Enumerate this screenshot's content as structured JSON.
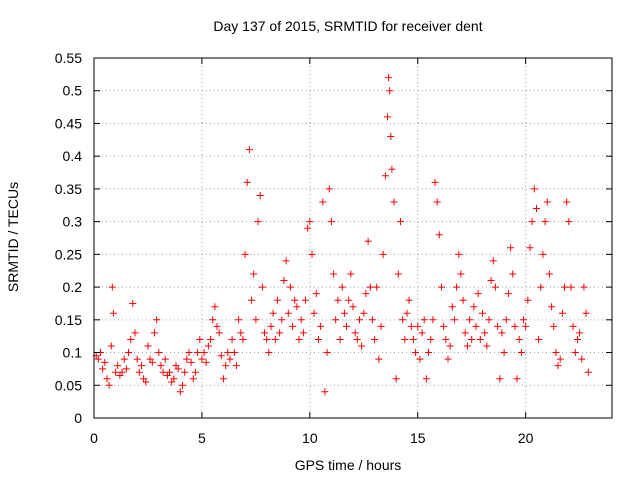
{
  "chart_data": {
    "type": "scatter",
    "title": "Day 137 of 2015, SRMTID for receiver dent",
    "xlabel": "GPS time / hours",
    "ylabel": "SRMTID / TECUs",
    "xlim": [
      0,
      24
    ],
    "ylim": [
      0,
      0.55
    ],
    "xticks": [
      0,
      5,
      10,
      15,
      20
    ],
    "xtick_labels": [
      "0",
      "5",
      "10",
      "15",
      "20"
    ],
    "yticks": [
      0,
      0.05,
      0.1,
      0.15,
      0.2,
      0.25,
      0.3,
      0.35,
      0.4,
      0.45,
      0.5,
      0.55
    ],
    "ytick_labels": [
      "0",
      "0.05",
      "0.1",
      "0.15",
      "0.2",
      "0.25",
      "0.3",
      "0.35",
      "0.4",
      "0.45",
      "0.5",
      "0.55"
    ],
    "grid": true,
    "marker": "+",
    "marker_color": "#ff0000",
    "series": [
      {
        "name": "SRMTID",
        "points": [
          [
            0.1,
            0.095
          ],
          [
            0.2,
            0.09
          ],
          [
            0.3,
            0.1
          ],
          [
            0.4,
            0.075
          ],
          [
            0.5,
            0.085
          ],
          [
            0.6,
            0.06
          ],
          [
            0.7,
            0.05
          ],
          [
            0.8,
            0.11
          ],
          [
            0.85,
            0.2
          ],
          [
            0.9,
            0.16
          ],
          [
            1.0,
            0.07
          ],
          [
            1.1,
            0.08
          ],
          [
            1.2,
            0.065
          ],
          [
            1.3,
            0.07
          ],
          [
            1.4,
            0.09
          ],
          [
            1.5,
            0.075
          ],
          [
            1.6,
            0.1
          ],
          [
            1.7,
            0.12
          ],
          [
            1.8,
            0.175
          ],
          [
            1.9,
            0.13
          ],
          [
            2.0,
            0.09
          ],
          [
            2.1,
            0.07
          ],
          [
            2.2,
            0.08
          ],
          [
            2.3,
            0.06
          ],
          [
            2.4,
            0.055
          ],
          [
            2.5,
            0.11
          ],
          [
            2.6,
            0.09
          ],
          [
            2.7,
            0.085
          ],
          [
            2.8,
            0.13
          ],
          [
            2.9,
            0.15
          ],
          [
            3.0,
            0.1
          ],
          [
            3.1,
            0.08
          ],
          [
            3.2,
            0.07
          ],
          [
            3.3,
            0.09
          ],
          [
            3.4,
            0.065
          ],
          [
            3.5,
            0.07
          ],
          [
            3.6,
            0.055
          ],
          [
            3.7,
            0.06
          ],
          [
            3.8,
            0.08
          ],
          [
            3.9,
            0.075
          ],
          [
            4.0,
            0.04
          ],
          [
            4.1,
            0.05
          ],
          [
            4.2,
            0.07
          ],
          [
            4.3,
            0.09
          ],
          [
            4.4,
            0.1
          ],
          [
            4.5,
            0.085
          ],
          [
            4.6,
            0.06
          ],
          [
            4.7,
            0.07
          ],
          [
            4.8,
            0.1
          ],
          [
            4.9,
            0.12
          ],
          [
            5.0,
            0.09
          ],
          [
            5.1,
            0.1
          ],
          [
            5.2,
            0.085
          ],
          [
            5.3,
            0.11
          ],
          [
            5.4,
            0.12
          ],
          [
            5.5,
            0.15
          ],
          [
            5.6,
            0.17
          ],
          [
            5.7,
            0.14
          ],
          [
            5.8,
            0.13
          ],
          [
            5.9,
            0.095
          ],
          [
            6.0,
            0.06
          ],
          [
            6.1,
            0.08
          ],
          [
            6.2,
            0.1
          ],
          [
            6.3,
            0.09
          ],
          [
            6.4,
            0.12
          ],
          [
            6.5,
            0.1
          ],
          [
            6.6,
            0.08
          ],
          [
            6.7,
            0.15
          ],
          [
            6.8,
            0.13
          ],
          [
            6.9,
            0.12
          ],
          [
            7.0,
            0.25
          ],
          [
            7.1,
            0.36
          ],
          [
            7.2,
            0.41
          ],
          [
            7.3,
            0.18
          ],
          [
            7.4,
            0.22
          ],
          [
            7.5,
            0.15
          ],
          [
            7.6,
            0.3
          ],
          [
            7.7,
            0.34
          ],
          [
            7.8,
            0.2
          ],
          [
            7.9,
            0.13
          ],
          [
            8.0,
            0.12
          ],
          [
            8.1,
            0.1
          ],
          [
            8.2,
            0.14
          ],
          [
            8.3,
            0.16
          ],
          [
            8.4,
            0.12
          ],
          [
            8.5,
            0.18
          ],
          [
            8.6,
            0.13
          ],
          [
            8.7,
            0.15
          ],
          [
            8.8,
            0.21
          ],
          [
            8.9,
            0.24
          ],
          [
            9.0,
            0.16
          ],
          [
            9.1,
            0.2
          ],
          [
            9.2,
            0.14
          ],
          [
            9.3,
            0.18
          ],
          [
            9.4,
            0.17
          ],
          [
            9.5,
            0.12
          ],
          [
            9.6,
            0.15
          ],
          [
            9.7,
            0.13
          ],
          [
            9.8,
            0.18
          ],
          [
            9.9,
            0.29
          ],
          [
            10.0,
            0.3
          ],
          [
            10.1,
            0.25
          ],
          [
            10.2,
            0.16
          ],
          [
            10.3,
            0.19
          ],
          [
            10.4,
            0.12
          ],
          [
            10.5,
            0.14
          ],
          [
            10.6,
            0.33
          ],
          [
            10.7,
            0.04
          ],
          [
            10.8,
            0.1
          ],
          [
            10.9,
            0.35
          ],
          [
            11.0,
            0.3
          ],
          [
            11.1,
            0.22
          ],
          [
            11.2,
            0.15
          ],
          [
            11.3,
            0.18
          ],
          [
            11.4,
            0.12
          ],
          [
            11.5,
            0.2
          ],
          [
            11.6,
            0.16
          ],
          [
            11.7,
            0.14
          ],
          [
            11.8,
            0.18
          ],
          [
            11.9,
            0.22
          ],
          [
            12.0,
            0.17
          ],
          [
            12.1,
            0.13
          ],
          [
            12.2,
            0.12
          ],
          [
            12.3,
            0.15
          ],
          [
            12.4,
            0.11
          ],
          [
            12.5,
            0.16
          ],
          [
            12.6,
            0.19
          ],
          [
            12.7,
            0.27
          ],
          [
            12.8,
            0.2
          ],
          [
            12.9,
            0.15
          ],
          [
            13.0,
            0.12
          ],
          [
            13.1,
            0.2
          ],
          [
            13.2,
            0.09
          ],
          [
            13.3,
            0.14
          ],
          [
            13.4,
            0.25
          ],
          [
            13.5,
            0.37
          ],
          [
            13.6,
            0.46
          ],
          [
            13.65,
            0.52
          ],
          [
            13.7,
            0.5
          ],
          [
            13.75,
            0.43
          ],
          [
            13.8,
            0.38
          ],
          [
            13.9,
            0.33
          ],
          [
            14.0,
            0.06
          ],
          [
            14.1,
            0.22
          ],
          [
            14.2,
            0.3
          ],
          [
            14.3,
            0.15
          ],
          [
            14.4,
            0.12
          ],
          [
            14.5,
            0.16
          ],
          [
            14.6,
            0.18
          ],
          [
            14.7,
            0.14
          ],
          [
            14.8,
            0.12
          ],
          [
            14.9,
            0.1
          ],
          [
            15.0,
            0.14
          ],
          [
            15.1,
            0.09
          ],
          [
            15.2,
            0.13
          ],
          [
            15.3,
            0.15
          ],
          [
            15.4,
            0.06
          ],
          [
            15.5,
            0.1
          ],
          [
            15.6,
            0.12
          ],
          [
            15.7,
            0.15
          ],
          [
            15.8,
            0.36
          ],
          [
            15.9,
            0.33
          ],
          [
            16.0,
            0.28
          ],
          [
            16.1,
            0.2
          ],
          [
            16.2,
            0.14
          ],
          [
            16.3,
            0.12
          ],
          [
            16.4,
            0.09
          ],
          [
            16.5,
            0.11
          ],
          [
            16.6,
            0.17
          ],
          [
            16.7,
            0.15
          ],
          [
            16.8,
            0.2
          ],
          [
            16.9,
            0.25
          ],
          [
            17.0,
            0.22
          ],
          [
            17.1,
            0.18
          ],
          [
            17.2,
            0.13
          ],
          [
            17.3,
            0.11
          ],
          [
            17.4,
            0.15
          ],
          [
            17.5,
            0.12
          ],
          [
            17.6,
            0.17
          ],
          [
            17.7,
            0.14
          ],
          [
            17.8,
            0.19
          ],
          [
            17.9,
            0.12
          ],
          [
            18.0,
            0.16
          ],
          [
            18.1,
            0.13
          ],
          [
            18.2,
            0.11
          ],
          [
            18.3,
            0.15
          ],
          [
            18.4,
            0.21
          ],
          [
            18.5,
            0.24
          ],
          [
            18.6,
            0.2
          ],
          [
            18.7,
            0.14
          ],
          [
            18.8,
            0.06
          ],
          [
            18.9,
            0.13
          ],
          [
            19.0,
            0.1
          ],
          [
            19.1,
            0.15
          ],
          [
            19.2,
            0.19
          ],
          [
            19.3,
            0.26
          ],
          [
            19.4,
            0.22
          ],
          [
            19.5,
            0.14
          ],
          [
            19.6,
            0.06
          ],
          [
            19.7,
            0.12
          ],
          [
            19.8,
            0.1
          ],
          [
            19.9,
            0.15
          ],
          [
            20.0,
            0.14
          ],
          [
            20.1,
            0.18
          ],
          [
            20.2,
            0.26
          ],
          [
            20.3,
            0.3
          ],
          [
            20.4,
            0.35
          ],
          [
            20.5,
            0.32
          ],
          [
            20.6,
            0.12
          ],
          [
            20.7,
            0.2
          ],
          [
            20.8,
            0.25
          ],
          [
            20.9,
            0.3
          ],
          [
            21.0,
            0.33
          ],
          [
            21.1,
            0.22
          ],
          [
            21.2,
            0.17
          ],
          [
            21.3,
            0.14
          ],
          [
            21.4,
            0.1
          ],
          [
            21.5,
            0.08
          ],
          [
            21.6,
            0.09
          ],
          [
            21.7,
            0.16
          ],
          [
            21.8,
            0.2
          ],
          [
            21.9,
            0.33
          ],
          [
            22.0,
            0.3
          ],
          [
            22.1,
            0.2
          ],
          [
            22.2,
            0.14
          ],
          [
            22.3,
            0.1
          ],
          [
            22.4,
            0.12
          ],
          [
            22.5,
            0.13
          ],
          [
            22.6,
            0.09
          ],
          [
            22.7,
            0.2
          ],
          [
            22.8,
            0.16
          ],
          [
            22.9,
            0.07
          ]
        ]
      }
    ]
  }
}
